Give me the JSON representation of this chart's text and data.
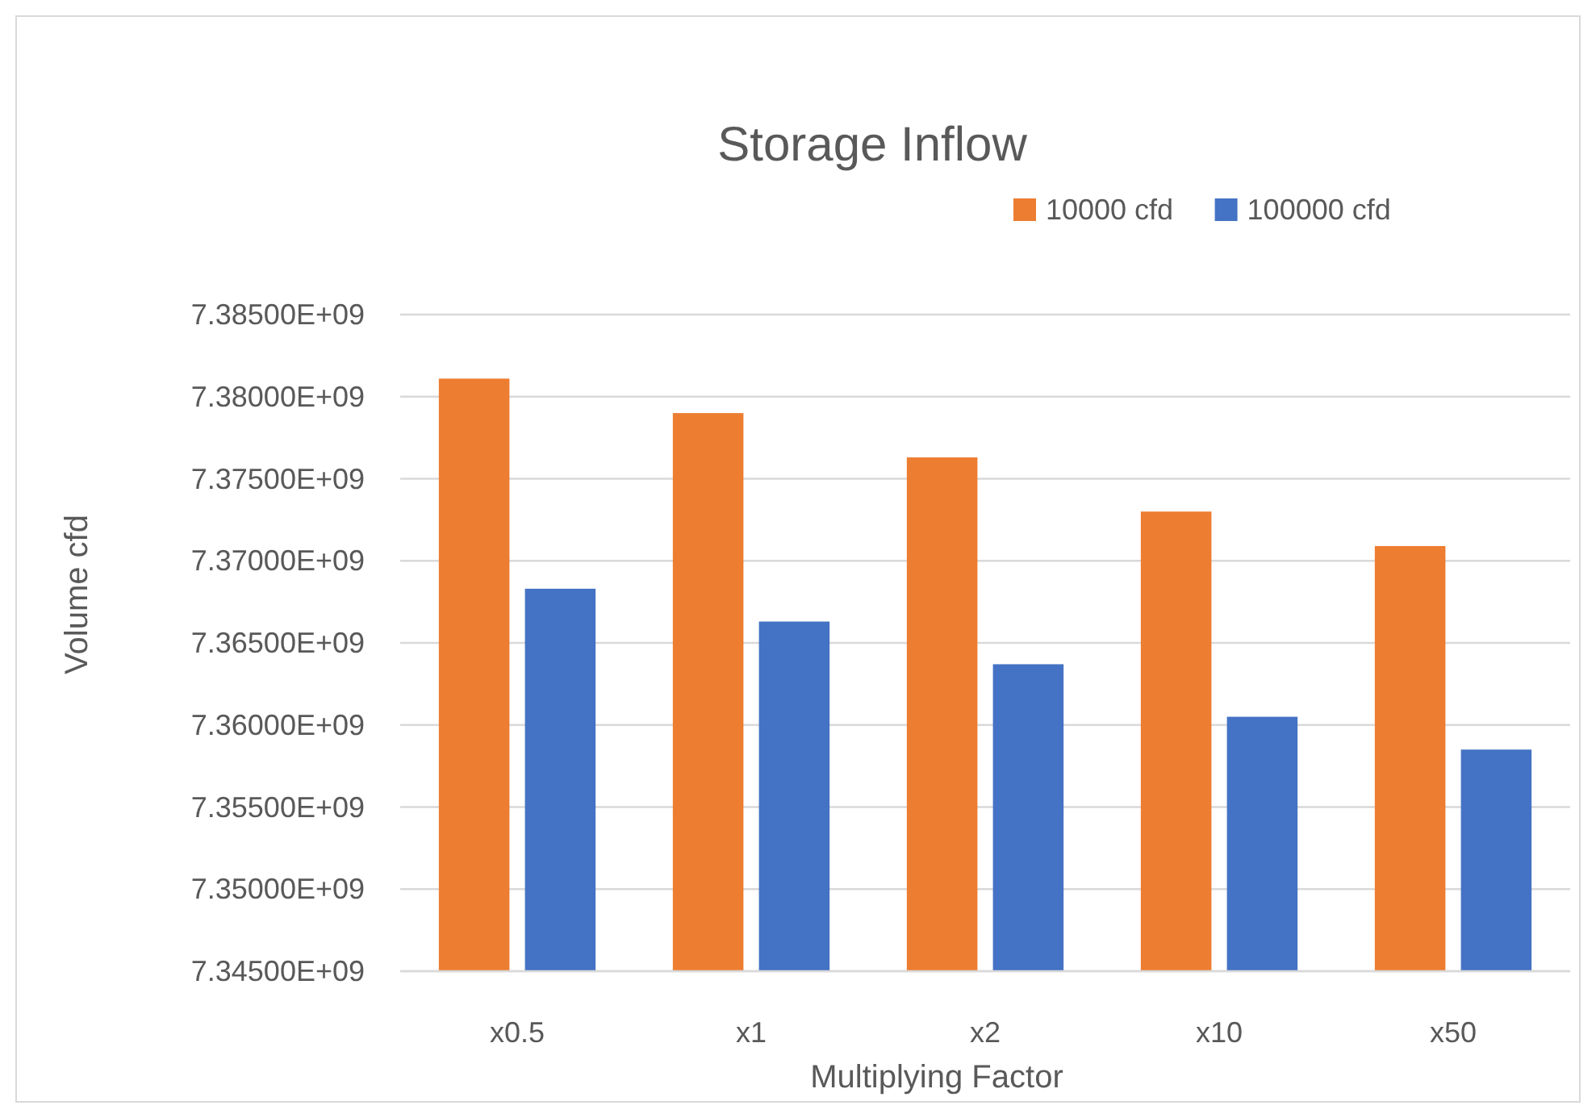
{
  "chart_data": {
    "type": "bar",
    "title": "Storage Inflow",
    "xlabel": "Multiplying Factor",
    "ylabel": "Volume cfd",
    "categories": [
      "x0.5",
      "x1",
      "x2",
      "x10",
      "x50"
    ],
    "series": [
      {
        "name": "10000 cfd",
        "color": "#ed7d31",
        "values": [
          7381100000,
          7379000000,
          7376300000,
          7373000000,
          7370900000
        ]
      },
      {
        "name": "100000 cfd",
        "color": "#4472c4",
        "values": [
          7368300000,
          7366300000,
          7363700000,
          7360500000,
          7358500000
        ]
      }
    ],
    "ylim": [
      7345000000,
      7385000000
    ],
    "yticks": [
      {
        "value": 7345000000,
        "label": "7.34500E+09"
      },
      {
        "value": 7350000000,
        "label": "7.35000E+09"
      },
      {
        "value": 7355000000,
        "label": "7.35500E+09"
      },
      {
        "value": 7360000000,
        "label": "7.36000E+09"
      },
      {
        "value": 7365000000,
        "label": "7.36500E+09"
      },
      {
        "value": 7370000000,
        "label": "7.37000E+09"
      },
      {
        "value": 7375000000,
        "label": "7.37500E+09"
      },
      {
        "value": 7380000000,
        "label": "7.38000E+09"
      },
      {
        "value": 7385000000,
        "label": "7.38500E+09"
      }
    ],
    "grid": "y",
    "legend": "top right"
  }
}
